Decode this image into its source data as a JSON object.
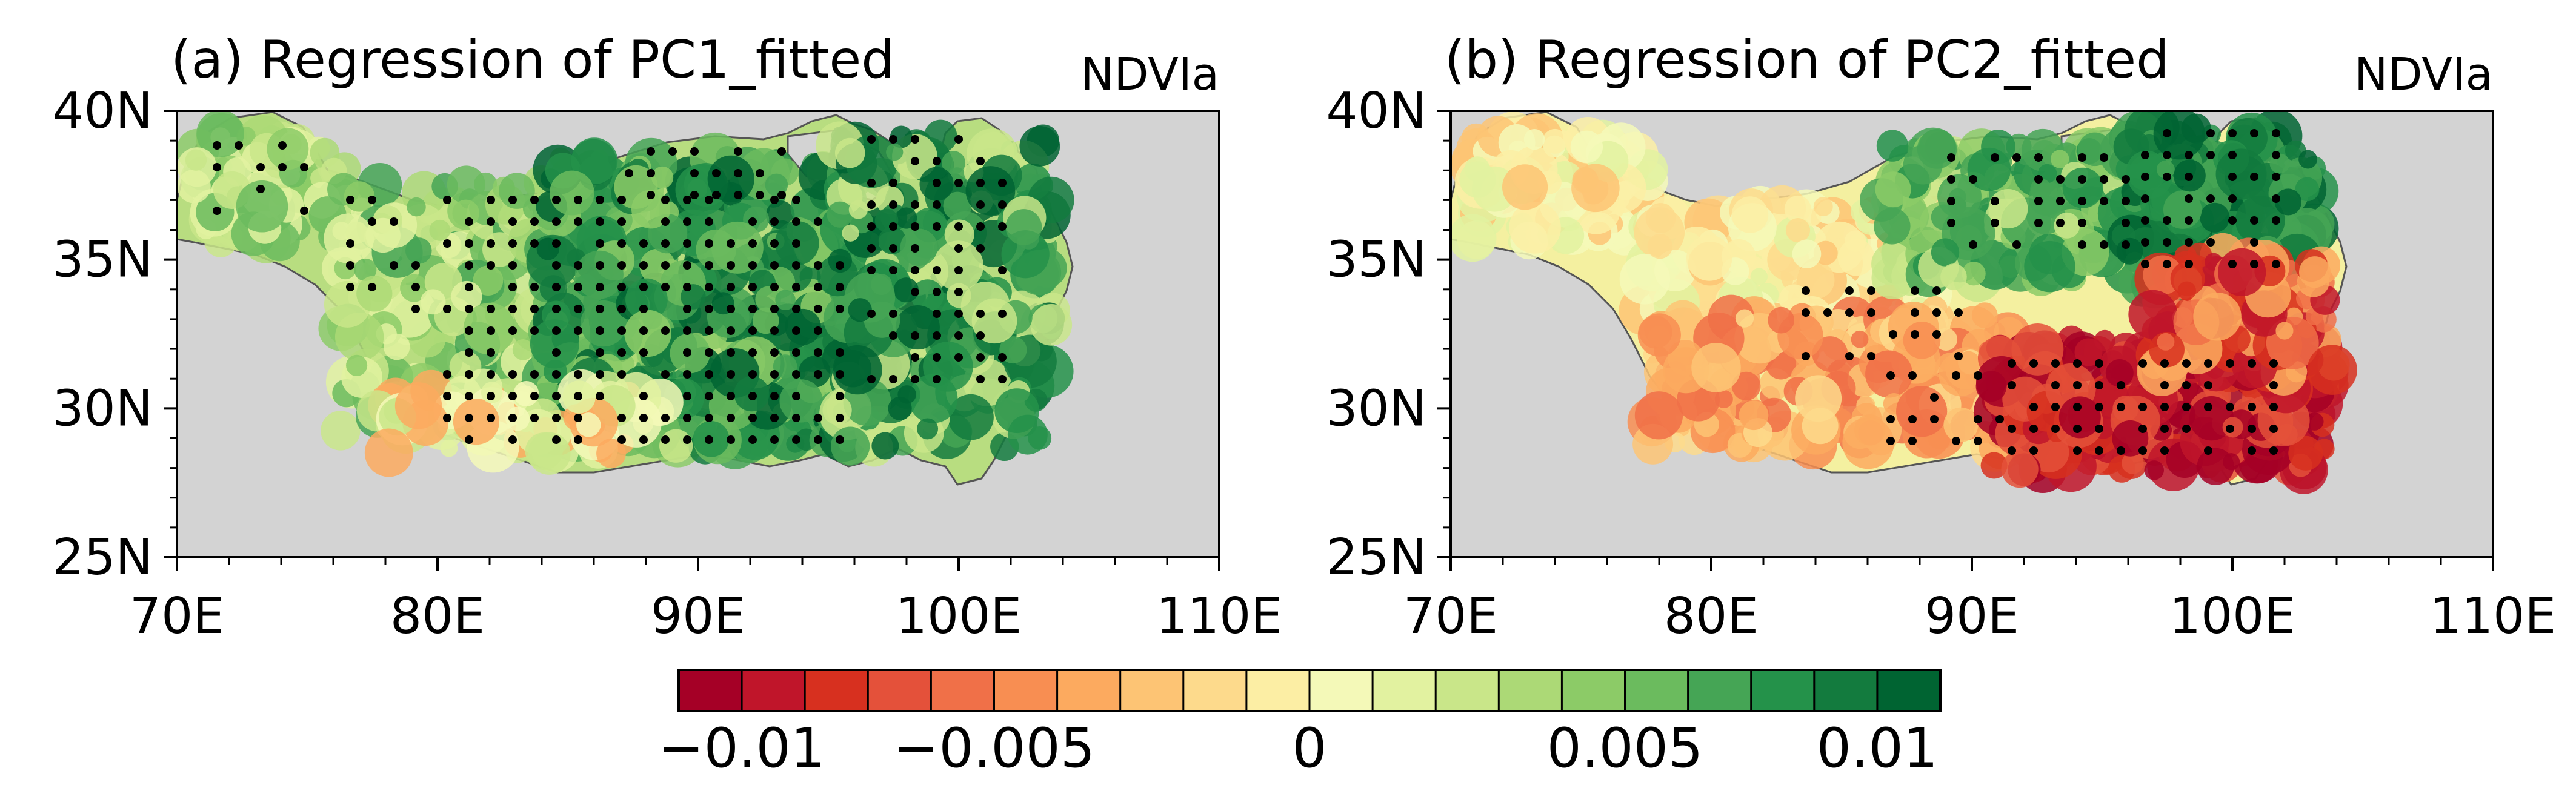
{
  "panels": [
    {
      "title": "(a) Regression of PC1_fitted",
      "variable": "NDVIa",
      "lat_ticks": [
        "40N",
        "35N",
        "30N",
        "25N"
      ],
      "lon_ticks": [
        "70E",
        "80E",
        "90E",
        "100E",
        "110E"
      ],
      "lon_range": [
        70,
        110
      ],
      "lat_range": [
        25,
        40
      ]
    },
    {
      "title": "(b) Regression of PC2_fitted",
      "variable": "NDVIa",
      "lat_ticks": [
        "40N",
        "35N",
        "30N",
        "25N"
      ],
      "lon_ticks": [
        "70E",
        "80E",
        "90E",
        "100E",
        "110E"
      ],
      "lon_range": [
        70,
        110
      ],
      "lat_range": [
        25,
        40
      ]
    }
  ],
  "colorbar": {
    "ticks": [
      "−0.01",
      "−0.005",
      "0",
      "0.005",
      "0.01"
    ],
    "colors": [
      "#a50026",
      "#c0152a",
      "#d7301f",
      "#e4513a",
      "#f07048",
      "#f88e52",
      "#fcaa5f",
      "#fdc474",
      "#fdda8c",
      "#fceea4",
      "#f4f9b8",
      "#e2f2a0",
      "#c9e689",
      "#acd976",
      "#8ccb67",
      "#6bbb5e",
      "#45a555",
      "#24924a",
      "#137b3e",
      "#006432"
    ]
  },
  "colors": {
    "ocean": "#d3d3d3",
    "frame": "#000000"
  }
}
